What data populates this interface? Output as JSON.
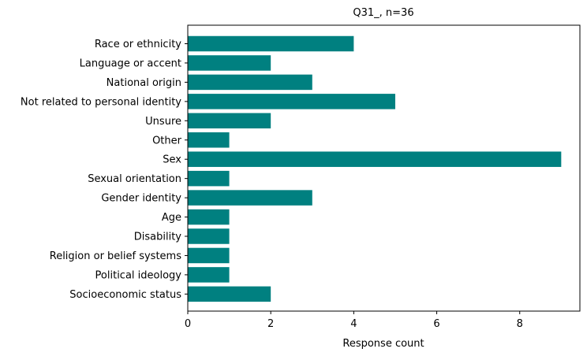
{
  "chart_data": {
    "type": "bar",
    "orientation": "horizontal",
    "title": "Q31_, n=36",
    "xlabel": "Response count",
    "ylabel": "",
    "categories": [
      "Race or ethnicity",
      "Language or accent",
      "National origin",
      "Not related to personal identity",
      "Unsure",
      "Other",
      "Sex",
      "Sexual orientation",
      "Gender identity",
      "Age",
      "Disability",
      "Religion or belief systems",
      "Political ideology",
      "Socioeconomic status"
    ],
    "values": [
      4,
      2,
      3,
      5,
      2,
      1,
      9,
      1,
      3,
      1,
      1,
      1,
      1,
      2
    ],
    "xlim": [
      0,
      9.45
    ],
    "xticks": [
      0,
      2,
      4,
      6,
      8
    ],
    "grid": false,
    "legend": "none",
    "bar_color": "#008080"
  }
}
